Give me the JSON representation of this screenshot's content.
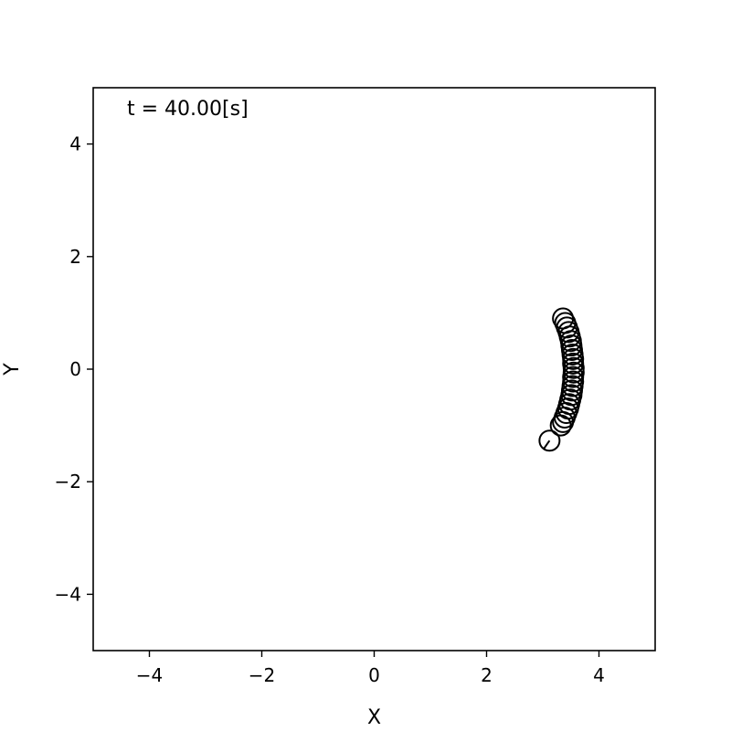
{
  "chart_data": {
    "type": "scatter",
    "title": "",
    "xlabel": "X",
    "ylabel": "Y",
    "xlim": [
      -5,
      5
    ],
    "ylim": [
      -5,
      5
    ],
    "xticks": [
      -4,
      -2,
      0,
      2,
      4
    ],
    "yticks": [
      -4,
      -2,
      0,
      2,
      4
    ],
    "xtick_labels": [
      "−4",
      "−2",
      "0",
      "2",
      "4"
    ],
    "ytick_labels": [
      "−4",
      "−2",
      "0",
      "2",
      "4"
    ],
    "grid": false,
    "legend": "none",
    "annotation": "t = 40.00[s]",
    "marker_color": "#000000",
    "points": [
      {
        "x": 3.36,
        "y": 0.9
      },
      {
        "x": 3.4,
        "y": 0.82
      },
      {
        "x": 3.43,
        "y": 0.74
      },
      {
        "x": 3.46,
        "y": 0.66
      },
      {
        "x": 3.48,
        "y": 0.58
      },
      {
        "x": 3.5,
        "y": 0.5
      },
      {
        "x": 3.51,
        "y": 0.42
      },
      {
        "x": 3.52,
        "y": 0.34
      },
      {
        "x": 3.53,
        "y": 0.26
      },
      {
        "x": 3.54,
        "y": 0.18
      },
      {
        "x": 3.54,
        "y": 0.1
      },
      {
        "x": 3.55,
        "y": 0.02
      },
      {
        "x": 3.55,
        "y": -0.06
      },
      {
        "x": 3.54,
        "y": -0.14
      },
      {
        "x": 3.54,
        "y": -0.22
      },
      {
        "x": 3.53,
        "y": -0.3
      },
      {
        "x": 3.52,
        "y": -0.38
      },
      {
        "x": 3.51,
        "y": -0.46
      },
      {
        "x": 3.49,
        "y": -0.54
      },
      {
        "x": 3.47,
        "y": -0.62
      },
      {
        "x": 3.45,
        "y": -0.7
      },
      {
        "x": 3.42,
        "y": -0.78
      },
      {
        "x": 3.39,
        "y": -0.86
      },
      {
        "x": 3.36,
        "y": -0.94
      },
      {
        "x": 3.32,
        "y": -1.0
      },
      {
        "x": 3.12,
        "y": -1.27
      }
    ],
    "heading_vector": {
      "x": 3.12,
      "y": -1.27,
      "angle_deg": 235
    }
  }
}
